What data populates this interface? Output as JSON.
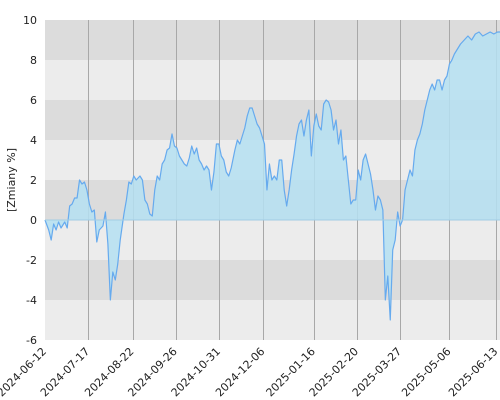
{
  "chart_data": {
    "type": "area",
    "title": "",
    "xlabel": "",
    "ylabel": "[Zmiany %]",
    "ylim": [
      -6,
      10
    ],
    "xlim": [
      "2024-06-12",
      "2025-06-16"
    ],
    "yticks": [
      "-6",
      "-4",
      "-2",
      "0",
      "2",
      "4",
      "6",
      "8",
      "10"
    ],
    "xticks": [
      "2024-06-12",
      "2024-07-17",
      "2024-08-22",
      "2024-09-26",
      "2024-10-31",
      "2024-12-06",
      "2025-01-16",
      "2025-02-20",
      "2025-03-27",
      "2025-05-06",
      "2025-06-13"
    ],
    "grid": true,
    "legend": "none",
    "colors": {
      "line": "#66aaee",
      "fill_positive": "#b5e0f2",
      "fill_negative": "#a2cde4",
      "band_dark": "#dcdcdc",
      "band_light": "#ececec",
      "vertical_grid": "#a8a8a8"
    },
    "series": [
      {
        "values": [
          [
            "2024-06-12",
            0.0
          ],
          [
            "2024-06-15",
            -0.5
          ],
          [
            "2024-06-17",
            -1.0
          ],
          [
            "2024-06-19",
            -0.2
          ],
          [
            "2024-06-21",
            -0.5
          ],
          [
            "2024-06-23",
            -0.1
          ],
          [
            "2024-06-25",
            -0.4
          ],
          [
            "2024-06-28",
            -0.1
          ],
          [
            "2024-06-30",
            -0.4
          ],
          [
            "2024-07-02",
            0.7
          ],
          [
            "2024-07-04",
            0.8
          ],
          [
            "2024-07-06",
            1.1
          ],
          [
            "2024-07-08",
            1.1
          ],
          [
            "2024-07-10",
            2.0
          ],
          [
            "2024-07-12",
            1.8
          ],
          [
            "2024-07-14",
            1.9
          ],
          [
            "2024-07-16",
            1.5
          ],
          [
            "2024-07-18",
            0.8
          ],
          [
            "2024-07-20",
            0.4
          ],
          [
            "2024-07-22",
            0.5
          ],
          [
            "2024-07-24",
            -1.1
          ],
          [
            "2024-07-26",
            -0.5
          ],
          [
            "2024-07-29",
            -0.3
          ],
          [
            "2024-07-31",
            0.4
          ],
          [
            "2024-08-02",
            -1.2
          ],
          [
            "2024-08-04",
            -4.0
          ],
          [
            "2024-08-06",
            -2.6
          ],
          [
            "2024-08-08",
            -3.0
          ],
          [
            "2024-08-10",
            -2.2
          ],
          [
            "2024-08-12",
            -1.0
          ],
          [
            "2024-08-15",
            0.3
          ],
          [
            "2024-08-17",
            1.0
          ],
          [
            "2024-08-19",
            1.9
          ],
          [
            "2024-08-21",
            1.8
          ],
          [
            "2024-08-23",
            2.2
          ],
          [
            "2024-08-25",
            2.0
          ],
          [
            "2024-08-28",
            2.2
          ],
          [
            "2024-08-30",
            2.0
          ],
          [
            "2024-09-01",
            1.0
          ],
          [
            "2024-09-03",
            0.8
          ],
          [
            "2024-09-05",
            0.3
          ],
          [
            "2024-09-07",
            0.2
          ],
          [
            "2024-09-09",
            1.5
          ],
          [
            "2024-09-11",
            2.2
          ],
          [
            "2024-09-13",
            2.0
          ],
          [
            "2024-09-15",
            2.8
          ],
          [
            "2024-09-17",
            3.0
          ],
          [
            "2024-09-19",
            3.5
          ],
          [
            "2024-09-21",
            3.6
          ],
          [
            "2024-09-23",
            4.3
          ],
          [
            "2024-09-25",
            3.7
          ],
          [
            "2024-09-27",
            3.6
          ],
          [
            "2024-09-29",
            3.2
          ],
          [
            "2024-10-01",
            3.0
          ],
          [
            "2024-10-03",
            2.8
          ],
          [
            "2024-10-05",
            2.7
          ],
          [
            "2024-10-07",
            3.1
          ],
          [
            "2024-10-09",
            3.7
          ],
          [
            "2024-10-11",
            3.3
          ],
          [
            "2024-10-13",
            3.6
          ],
          [
            "2024-10-15",
            3.0
          ],
          [
            "2024-10-17",
            2.8
          ],
          [
            "2024-10-19",
            2.5
          ],
          [
            "2024-10-21",
            2.7
          ],
          [
            "2024-10-23",
            2.5
          ],
          [
            "2024-10-25",
            1.5
          ],
          [
            "2024-10-27",
            2.4
          ],
          [
            "2024-10-29",
            3.8
          ],
          [
            "2024-10-31",
            3.8
          ],
          [
            "2024-11-02",
            3.2
          ],
          [
            "2024-11-04",
            3.0
          ],
          [
            "2024-11-06",
            2.4
          ],
          [
            "2024-11-08",
            2.2
          ],
          [
            "2024-11-10",
            2.6
          ],
          [
            "2024-11-13",
            3.5
          ],
          [
            "2024-11-15",
            4.0
          ],
          [
            "2024-11-17",
            3.8
          ],
          [
            "2024-11-19",
            4.2
          ],
          [
            "2024-11-21",
            4.6
          ],
          [
            "2024-11-23",
            5.2
          ],
          [
            "2024-11-25",
            5.6
          ],
          [
            "2024-11-27",
            5.6
          ],
          [
            "2024-11-29",
            5.2
          ],
          [
            "2024-12-01",
            4.8
          ],
          [
            "2024-12-03",
            4.6
          ],
          [
            "2024-12-05",
            4.2
          ],
          [
            "2024-12-07",
            3.8
          ],
          [
            "2024-12-09",
            1.5
          ],
          [
            "2024-12-11",
            2.8
          ],
          [
            "2024-12-13",
            2.0
          ],
          [
            "2024-12-15",
            2.2
          ],
          [
            "2024-12-17",
            2.0
          ],
          [
            "2024-12-19",
            3.0
          ],
          [
            "2024-12-21",
            3.0
          ],
          [
            "2024-12-23",
            1.5
          ],
          [
            "2024-12-25",
            0.7
          ],
          [
            "2024-12-27",
            1.5
          ],
          [
            "2024-12-29",
            2.5
          ],
          [
            "2024-12-31",
            3.3
          ],
          [
            "2025-01-02",
            4.2
          ],
          [
            "2025-01-04",
            4.8
          ],
          [
            "2025-01-06",
            5.0
          ],
          [
            "2025-01-08",
            4.2
          ],
          [
            "2025-01-10",
            5.0
          ],
          [
            "2025-01-12",
            5.5
          ],
          [
            "2025-01-14",
            3.2
          ],
          [
            "2025-01-16",
            4.7
          ],
          [
            "2025-01-18",
            5.3
          ],
          [
            "2025-01-20",
            4.7
          ],
          [
            "2025-01-22",
            4.5
          ],
          [
            "2025-01-24",
            5.8
          ],
          [
            "2025-01-26",
            6.0
          ],
          [
            "2025-01-28",
            5.9
          ],
          [
            "2025-01-30",
            5.5
          ],
          [
            "2025-02-01",
            4.5
          ],
          [
            "2025-02-03",
            5.0
          ],
          [
            "2025-02-05",
            3.8
          ],
          [
            "2025-02-07",
            4.5
          ],
          [
            "2025-02-09",
            3.0
          ],
          [
            "2025-02-11",
            3.2
          ],
          [
            "2025-02-13",
            2.0
          ],
          [
            "2025-02-15",
            0.8
          ],
          [
            "2025-02-17",
            1.0
          ],
          [
            "2025-02-19",
            1.0
          ],
          [
            "2025-02-21",
            2.5
          ],
          [
            "2025-02-23",
            2.0
          ],
          [
            "2025-02-25",
            3.0
          ],
          [
            "2025-02-27",
            3.3
          ],
          [
            "2025-03-01",
            2.8
          ],
          [
            "2025-03-03",
            2.3
          ],
          [
            "2025-03-05",
            1.5
          ],
          [
            "2025-03-07",
            0.5
          ],
          [
            "2025-03-09",
            1.2
          ],
          [
            "2025-03-11",
            1.0
          ],
          [
            "2025-03-13",
            0.5
          ],
          [
            "2025-03-15",
            -4.0
          ],
          [
            "2025-03-17",
            -2.8
          ],
          [
            "2025-03-19",
            -5.0
          ],
          [
            "2025-03-21",
            -1.5
          ],
          [
            "2025-03-23",
            -1.0
          ],
          [
            "2025-03-25",
            0.4
          ],
          [
            "2025-03-27",
            -0.3
          ],
          [
            "2025-03-29",
            0.0
          ],
          [
            "2025-03-31",
            1.5
          ],
          [
            "2025-04-02",
            2.0
          ],
          [
            "2025-04-04",
            2.5
          ],
          [
            "2025-04-06",
            2.2
          ],
          [
            "2025-04-08",
            3.5
          ],
          [
            "2025-04-10",
            4.0
          ],
          [
            "2025-04-12",
            4.3
          ],
          [
            "2025-04-14",
            4.8
          ],
          [
            "2025-04-16",
            5.5
          ],
          [
            "2025-04-18",
            6.0
          ],
          [
            "2025-04-20",
            6.5
          ],
          [
            "2025-04-22",
            6.8
          ],
          [
            "2025-04-24",
            6.5
          ],
          [
            "2025-04-26",
            7.0
          ],
          [
            "2025-04-28",
            7.0
          ],
          [
            "2025-04-30",
            6.5
          ],
          [
            "2025-05-02",
            7.0
          ],
          [
            "2025-05-04",
            7.2
          ],
          [
            "2025-05-06",
            7.8
          ],
          [
            "2025-05-08",
            8.0
          ],
          [
            "2025-05-10",
            8.3
          ],
          [
            "2025-05-12",
            8.5
          ],
          [
            "2025-05-15",
            8.8
          ],
          [
            "2025-05-18",
            9.0
          ],
          [
            "2025-05-21",
            9.2
          ],
          [
            "2025-05-24",
            9.0
          ],
          [
            "2025-05-27",
            9.3
          ],
          [
            "2025-05-30",
            9.4
          ],
          [
            "2025-06-02",
            9.2
          ],
          [
            "2025-06-05",
            9.3
          ],
          [
            "2025-06-08",
            9.4
          ],
          [
            "2025-06-11",
            9.3
          ],
          [
            "2025-06-14",
            9.4
          ],
          [
            "2025-06-16",
            9.4
          ]
        ]
      }
    ]
  }
}
